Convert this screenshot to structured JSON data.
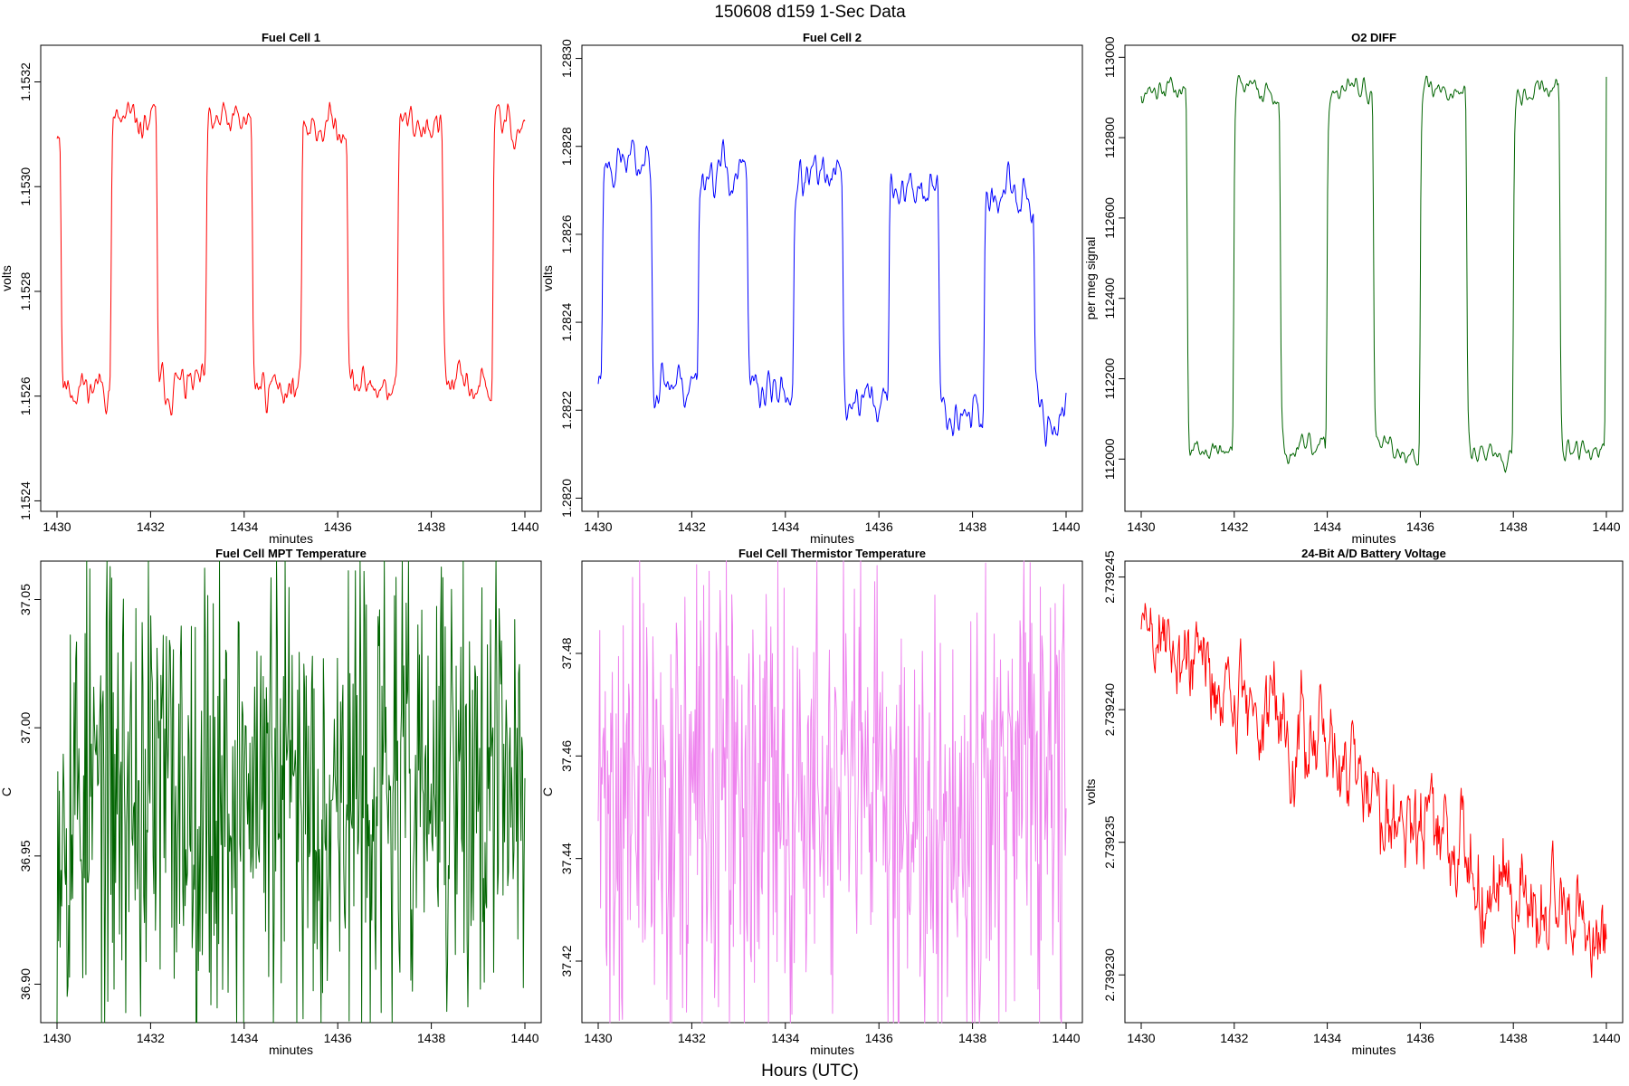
{
  "figure": {
    "title": "150608   d159   1-Sec Data",
    "xlabel": "Hours (UTC)"
  },
  "chart_data": [
    {
      "type": "line",
      "title": "Fuel Cell 1",
      "xlabel": "minutes",
      "ylabel": "volts",
      "color": "#ff0000",
      "xlim": [
        1430,
        1440
      ],
      "ylim": [
        1.15238,
        1.15327
      ],
      "xticks": [
        "1430",
        "1432",
        "1434",
        "1436",
        "1438",
        "1440"
      ],
      "yticks": [
        "1.1524",
        "1.1526",
        "1.1528",
        "1.1530",
        "1.1532"
      ],
      "ytick_values": [
        1.1524,
        1.1526,
        1.1528,
        1.153,
        1.1532
      ],
      "pattern": {
        "kind": "square",
        "t0": 1430.1,
        "period": 2.04,
        "high_frac": 0.52,
        "low": 1.15262,
        "high": 1.15312,
        "noise": 5e-05,
        "trend": 0.0,
        "seed": 11
      },
      "series": [
        {
          "name": "Fuel Cell 1",
          "x_range": [
            1430,
            1440
          ],
          "points": 600
        }
      ]
    },
    {
      "type": "line",
      "title": "Fuel Cell 2",
      "xlabel": "minutes",
      "ylabel": "volts",
      "color": "#0000ff",
      "xlim": [
        1430,
        1440
      ],
      "ylim": [
        1.28197,
        1.28303
      ],
      "xticks": [
        "1430",
        "1432",
        "1434",
        "1436",
        "1438",
        "1440"
      ],
      "yticks": [
        "1.2820",
        "1.2822",
        "1.2824",
        "1.2826",
        "1.2828",
        "1.2830"
      ],
      "ytick_values": [
        1.282,
        1.2822,
        1.2824,
        1.2826,
        1.2828,
        1.283
      ],
      "pattern": {
        "kind": "square",
        "t0": 1430.1,
        "period": 2.04,
        "high_frac": 0.52,
        "low": 1.28228,
        "high": 1.28277,
        "noise": 7e-05,
        "trend": -1e-05,
        "seed": 23,
        "start_high": true
      },
      "series": [
        {
          "name": "Fuel Cell 2",
          "x_range": [
            1430,
            1440
          ],
          "points": 600
        }
      ]
    },
    {
      "type": "line",
      "title": "O2 DIFF",
      "xlabel": "minutes",
      "ylabel": "per meg signal",
      "color": "#006400",
      "xlim": [
        1430,
        1440
      ],
      "ylim": [
        111870,
        113030
      ],
      "xticks": [
        "1430",
        "1432",
        "1434",
        "1436",
        "1438",
        "1440"
      ],
      "yticks": [
        "112000",
        "112200",
        "112400",
        "112600",
        "112800",
        "113000"
      ],
      "ytick_values": [
        112000,
        112200,
        112400,
        112600,
        112800,
        113000
      ],
      "pattern": {
        "kind": "square",
        "t0": 1430.0,
        "period": 2.0,
        "high_frac": 0.5,
        "low": 112020,
        "high": 112920,
        "noise": 40,
        "trend": 0,
        "seed": 37,
        "start_high": true
      },
      "series": [
        {
          "name": "O2 DIFF",
          "x_range": [
            1430,
            1440
          ],
          "points": 600
        }
      ]
    },
    {
      "type": "line",
      "title": "Fuel Cell MPT Temperature",
      "xlabel": "minutes",
      "ylabel": "C",
      "color": "#006400",
      "xlim": [
        1430,
        1440
      ],
      "ylim": [
        36.885,
        37.065
      ],
      "xticks": [
        "1430",
        "1432",
        "1434",
        "1436",
        "1438",
        "1440"
      ],
      "yticks": [
        "36.90",
        "36.95",
        "37.00",
        "37.05"
      ],
      "ytick_values": [
        36.9,
        36.95,
        37.0,
        37.05
      ],
      "pattern": {
        "kind": "noise",
        "mean": 36.975,
        "noise": 0.045,
        "trend": 0,
        "seed": 53
      },
      "series": [
        {
          "name": "Fuel Cell MPT Temperature",
          "x_range": [
            1430,
            1440
          ],
          "points": 600
        }
      ]
    },
    {
      "type": "line",
      "title": "Fuel Cell Thermistor Temperature",
      "xlabel": "minutes",
      "ylabel": "C",
      "color": "#ee82ee",
      "xlim": [
        1430,
        1440
      ],
      "ylim": [
        37.408,
        37.498
      ],
      "xticks": [
        "1430",
        "1432",
        "1434",
        "1436",
        "1438",
        "1440"
      ],
      "yticks": [
        "37.42",
        "37.44",
        "37.46",
        "37.48"
      ],
      "ytick_values": [
        37.42,
        37.44,
        37.46,
        37.48
      ],
      "pattern": {
        "kind": "noise",
        "mean": 37.451,
        "noise": 0.022,
        "trend": 0,
        "seed": 71
      },
      "series": [
        {
          "name": "Fuel Cell Thermistor Temperature",
          "x_range": [
            1430,
            1440
          ],
          "points": 600
        }
      ]
    },
    {
      "type": "line",
      "title": "24-Bit A/D Battery Voltage",
      "xlabel": "minutes",
      "ylabel": "volts",
      "color": "#ff0000",
      "xlim": [
        1430,
        1440
      ],
      "ylim": [
        2.7392282,
        2.7392456
      ],
      "xticks": [
        "1430",
        "1432",
        "1434",
        "1436",
        "1438",
        "1440"
      ],
      "yticks": [
        "2.739230",
        "2.739235",
        "2.739240",
        "2.739245"
      ],
      "ytick_values": [
        2.73923,
        2.739235,
        2.73924,
        2.739245
      ],
      "pattern": {
        "kind": "trend",
        "start": 2.7392432,
        "end": 2.7392306,
        "noise": 1.2e-06,
        "seed": 89
      },
      "series": [
        {
          "name": "24-Bit A/D Battery Voltage",
          "x_range": [
            1430,
            1440
          ],
          "points": 600
        }
      ]
    }
  ]
}
